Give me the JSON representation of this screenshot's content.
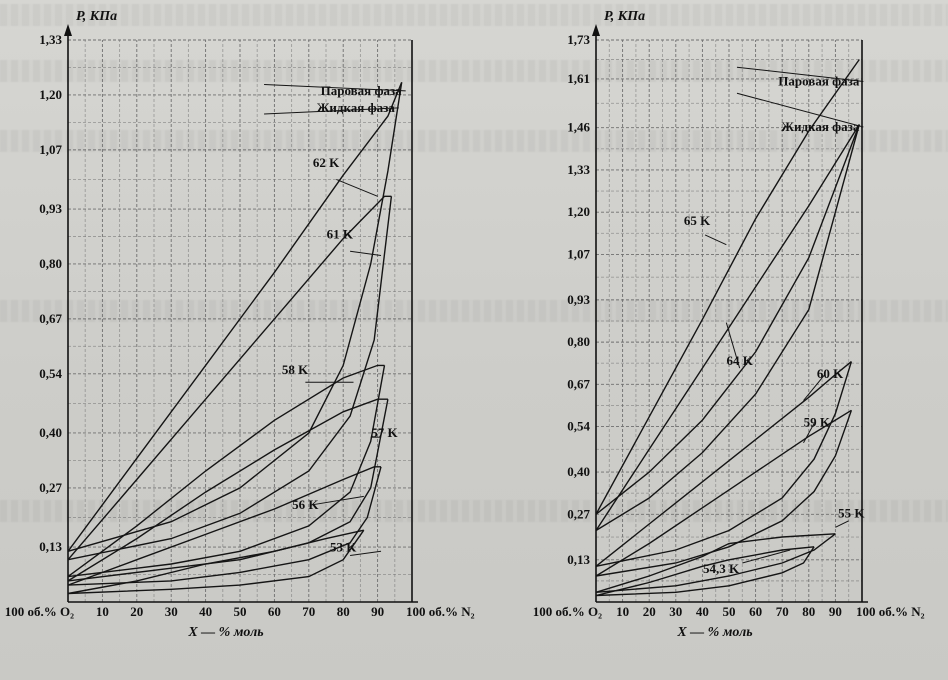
{
  "chart_data": [
    {
      "type": "line",
      "ylabel": "P, КПа",
      "xlabel": "X — % моль",
      "x_left_label": "100 об.% O₂",
      "x_right_label": "100 об.% N₂",
      "yticks": [
        "0,13",
        "0,27",
        "0,40",
        "0,54",
        "0,67",
        "0,80",
        "0,93",
        "1,07",
        "1,20",
        "1,33"
      ],
      "xticks": [
        "10",
        "20",
        "30",
        "40",
        "50",
        "60",
        "70",
        "80",
        "90"
      ],
      "ylim": [
        0,
        1.33
      ],
      "xlim": [
        0,
        100
      ],
      "grid": true,
      "legend": [
        {
          "label": "Паровая фаза",
          "ax": 57,
          "ay": 1.22,
          "lx": 97,
          "ly": 1.2
        },
        {
          "label": "Жидкая фаза",
          "ax": 57,
          "ay": 1.15,
          "lx": 95,
          "ly": 1.16
        }
      ],
      "series": [
        {
          "name": "62 K",
          "lx": 75,
          "ly": 1.03,
          "ax": 78,
          "ay": 1.0,
          "bx": 90,
          "by": 0.96,
          "vapor": [
            [
              0,
              0.12
            ],
            [
              20,
              0.34
            ],
            [
              40,
              0.56
            ],
            [
              60,
              0.78
            ],
            [
              80,
              1.01
            ],
            [
              93,
              1.15
            ],
            [
              97,
              1.23
            ]
          ],
          "liquid": [
            [
              0,
              0.12
            ],
            [
              30,
              0.19
            ],
            [
              50,
              0.27
            ],
            [
              70,
              0.4
            ],
            [
              80,
              0.56
            ],
            [
              88,
              0.8
            ],
            [
              93,
              1.02
            ],
            [
              97,
              1.23
            ]
          ]
        },
        {
          "name": "61 K",
          "lx": 79,
          "ly": 0.86,
          "ax": 82,
          "ay": 0.83,
          "bx": 91,
          "by": 0.82,
          "vapor": [
            [
              0,
              0.1
            ],
            [
              20,
              0.29
            ],
            [
              40,
              0.48
            ],
            [
              60,
              0.67
            ],
            [
              80,
              0.86
            ],
            [
              92,
              0.96
            ],
            [
              94,
              0.96
            ]
          ],
          "liquid": [
            [
              0,
              0.1
            ],
            [
              30,
              0.15
            ],
            [
              50,
              0.21
            ],
            [
              70,
              0.31
            ],
            [
              82,
              0.44
            ],
            [
              89,
              0.62
            ],
            [
              94,
              0.96
            ]
          ]
        },
        {
          "name": "58 K",
          "lx": 66,
          "ly": 0.54,
          "ax": 69,
          "ay": 0.52,
          "bx": 83,
          "by": 0.52,
          "vapor": [
            [
              0,
              0.06
            ],
            [
              20,
              0.18
            ],
            [
              40,
              0.31
            ],
            [
              60,
              0.43
            ],
            [
              80,
              0.53
            ],
            [
              90,
              0.56
            ],
            [
              92,
              0.56
            ]
          ],
          "liquid": [
            [
              0,
              0.06
            ],
            [
              30,
              0.09
            ],
            [
              50,
              0.12
            ],
            [
              70,
              0.18
            ],
            [
              82,
              0.26
            ],
            [
              88,
              0.38
            ],
            [
              92,
              0.56
            ]
          ]
        },
        {
          "name": "57 K",
          "lx": 92,
          "ly": 0.39,
          "ax": 91,
          "ay": 0.39,
          "bx": 88,
          "by": 0.39,
          "vapor": [
            [
              0,
              0.05
            ],
            [
              20,
              0.15
            ],
            [
              40,
              0.26
            ],
            [
              60,
              0.36
            ],
            [
              80,
              0.45
            ],
            [
              90,
              0.48
            ],
            [
              93,
              0.48
            ]
          ],
          "liquid": [
            [
              0,
              0.05
            ],
            [
              30,
              0.08
            ],
            [
              50,
              0.1
            ],
            [
              70,
              0.14
            ],
            [
              82,
              0.19
            ],
            [
              88,
              0.27
            ],
            [
              93,
              0.48
            ]
          ]
        },
        {
          "name": "56 K",
          "lx": 69,
          "ly": 0.22,
          "ax": 71,
          "ay": 0.23,
          "bx": 86,
          "by": 0.25,
          "vapor": [
            [
              0,
              0.04
            ],
            [
              20,
              0.1
            ],
            [
              40,
              0.16
            ],
            [
              60,
              0.22
            ],
            [
              80,
              0.29
            ],
            [
              89,
              0.32
            ],
            [
              91,
              0.32
            ]
          ],
          "liquid": [
            [
              0,
              0.04
            ],
            [
              30,
              0.05
            ],
            [
              50,
              0.07
            ],
            [
              70,
              0.1
            ],
            [
              82,
              0.14
            ],
            [
              87,
              0.2
            ],
            [
              91,
              0.32
            ]
          ]
        },
        {
          "name": "53 K",
          "lx": 80,
          "ly": 0.12,
          "ax": 82,
          "ay": 0.11,
          "bx": 91,
          "by": 0.12,
          "vapor": [
            [
              0,
              0.02
            ],
            [
              20,
              0.05
            ],
            [
              40,
              0.09
            ],
            [
              60,
              0.12
            ],
            [
              75,
              0.15
            ],
            [
              86,
              0.17
            ]
          ],
          "liquid": [
            [
              0,
              0.02
            ],
            [
              30,
              0.03
            ],
            [
              50,
              0.04
            ],
            [
              70,
              0.06
            ],
            [
              80,
              0.1
            ],
            [
              86,
              0.17
            ]
          ]
        }
      ]
    },
    {
      "type": "line",
      "ylabel": "P, КПа",
      "xlabel": "X — % моль",
      "x_left_label": "100 об.% O₂",
      "x_right_label": "100 об.% N₂",
      "yticks": [
        "0,13",
        "0,27",
        "0,40",
        "0,54",
        "0,67",
        "0,80",
        "0,93",
        "1,07",
        "1,20",
        "1,33",
        "1,46",
        "1,61",
        "1,73"
      ],
      "xticks": [
        "10",
        "20",
        "30",
        "40",
        "50",
        "60",
        "70",
        "80",
        "90"
      ],
      "ylim": [
        0,
        1.73
      ],
      "xlim": [
        0,
        100
      ],
      "grid": true,
      "legend": [
        {
          "label": "Паровая фаза",
          "ax": 53,
          "ay": 1.64,
          "lx": 99,
          "ly": 1.59
        },
        {
          "label": "Жидкая фаза",
          "ax": 53,
          "ay": 1.56,
          "lx": 99,
          "ly": 1.45
        }
      ],
      "series": [
        {
          "name": "65 K",
          "lx": 38,
          "ly": 1.16,
          "ax": 41,
          "ay": 1.13,
          "bx": 49,
          "by": 1.1,
          "vapor": [
            [
              0,
              0.27
            ],
            [
              20,
              0.57
            ],
            [
              40,
              0.87
            ],
            [
              60,
              1.18
            ],
            [
              80,
              1.45
            ],
            [
              99,
              1.67
            ]
          ],
          "liquid": [
            [
              0,
              0.27
            ],
            [
              20,
              0.4
            ],
            [
              40,
              0.56
            ],
            [
              60,
              0.77
            ],
            [
              80,
              1.06
            ],
            [
              99,
              1.47
            ]
          ]
        },
        {
          "name": "64 K",
          "lx": 54,
          "ly": 0.73,
          "ax": 54,
          "ay": 0.72,
          "bx": 49,
          "by": 0.86,
          "vapor": [
            [
              0,
              0.22
            ],
            [
              20,
              0.47
            ],
            [
              40,
              0.72
            ],
            [
              60,
              0.97
            ],
            [
              80,
              1.22
            ],
            [
              99,
              1.47
            ]
          ],
          "liquid": [
            [
              0,
              0.22
            ],
            [
              20,
              0.32
            ],
            [
              40,
              0.46
            ],
            [
              60,
              0.64
            ],
            [
              80,
              0.9
            ],
            [
              99,
              1.47
            ]
          ]
        },
        {
          "name": "60 K",
          "lx": 88,
          "ly": 0.69,
          "ax": 86,
          "ay": 0.7,
          "bx": 78,
          "by": 0.62,
          "vapor": [
            [
              0,
              0.11
            ],
            [
              20,
              0.24
            ],
            [
              40,
              0.37
            ],
            [
              60,
              0.5
            ],
            [
              80,
              0.63
            ],
            [
              90,
              0.7
            ],
            [
              96,
              0.74
            ]
          ],
          "liquid": [
            [
              0,
              0.11
            ],
            [
              30,
              0.16
            ],
            [
              50,
              0.22
            ],
            [
              70,
              0.32
            ],
            [
              82,
              0.44
            ],
            [
              90,
              0.58
            ],
            [
              96,
              0.74
            ]
          ]
        },
        {
          "name": "59 K",
          "lx": 83,
          "ly": 0.54,
          "ax": 82,
          "ay": 0.55,
          "bx": 78,
          "by": 0.49,
          "vapor": [
            [
              0,
              0.08
            ],
            [
              20,
              0.18
            ],
            [
              40,
              0.29
            ],
            [
              60,
              0.4
            ],
            [
              80,
              0.51
            ],
            [
              90,
              0.56
            ],
            [
              96,
              0.59
            ]
          ],
          "liquid": [
            [
              0,
              0.08
            ],
            [
              30,
              0.12
            ],
            [
              50,
              0.17
            ],
            [
              70,
              0.25
            ],
            [
              82,
              0.34
            ],
            [
              90,
              0.45
            ],
            [
              96,
              0.59
            ]
          ]
        },
        {
          "name": "55 K",
          "lx": 96,
          "ly": 0.26,
          "ax": 95,
          "ay": 0.25,
          "bx": 90,
          "by": 0.23,
          "vapor": [
            [
              0,
              0.03
            ],
            [
              20,
              0.08
            ],
            [
              40,
              0.14
            ],
            [
              50,
              0.18
            ],
            [
              70,
              0.2
            ],
            [
              90,
              0.21
            ]
          ],
          "liquid": [
            [
              0,
              0.03
            ],
            [
              30,
              0.05
            ],
            [
              50,
              0.08
            ],
            [
              70,
              0.12
            ],
            [
              82,
              0.16
            ],
            [
              90,
              0.21
            ]
          ]
        },
        {
          "name": "54,3 K",
          "lx": 47,
          "ly": 0.09,
          "ax": 55,
          "ay": 0.12,
          "bx": 73,
          "by": 0.16,
          "vapor": [
            [
              0,
              0.02
            ],
            [
              20,
              0.06
            ],
            [
              40,
              0.11
            ],
            [
              50,
              0.13
            ],
            [
              70,
              0.16
            ],
            [
              82,
              0.17
            ]
          ],
          "liquid": [
            [
              0,
              0.02
            ],
            [
              30,
              0.03
            ],
            [
              50,
              0.05
            ],
            [
              70,
              0.09
            ],
            [
              78,
              0.12
            ],
            [
              82,
              0.17
            ]
          ]
        }
      ]
    }
  ]
}
